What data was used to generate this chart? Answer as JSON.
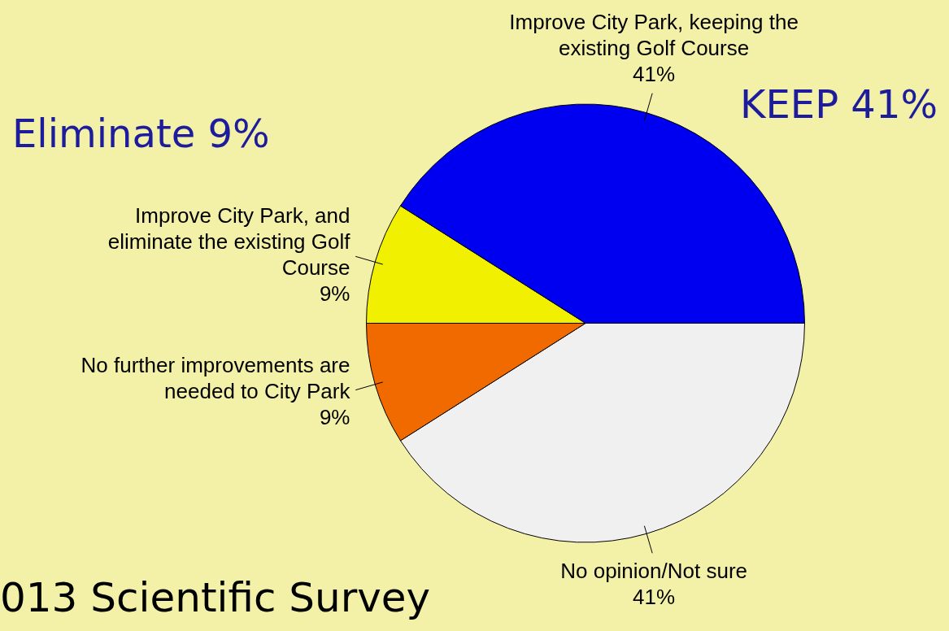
{
  "chart_data": {
    "type": "pie",
    "categories": [
      "No opinion/Not sure",
      "No further improvements are needed to City Park",
      "Improve City Park, and eliminate the existing Golf Course",
      "Improve City Park, keeping the existing Golf Course"
    ],
    "values": [
      41,
      9,
      9,
      41
    ],
    "colors": [
      "#f0f0f0",
      "#f06a00",
      "#f0f000",
      "#0000f0"
    ],
    "value_labels": [
      "41%",
      "9%",
      "9%",
      "41%"
    ],
    "annotations": [
      "Eliminate 9%",
      "KEEP 41%",
      "013 Scientific Survey"
    ],
    "legend": false
  }
}
